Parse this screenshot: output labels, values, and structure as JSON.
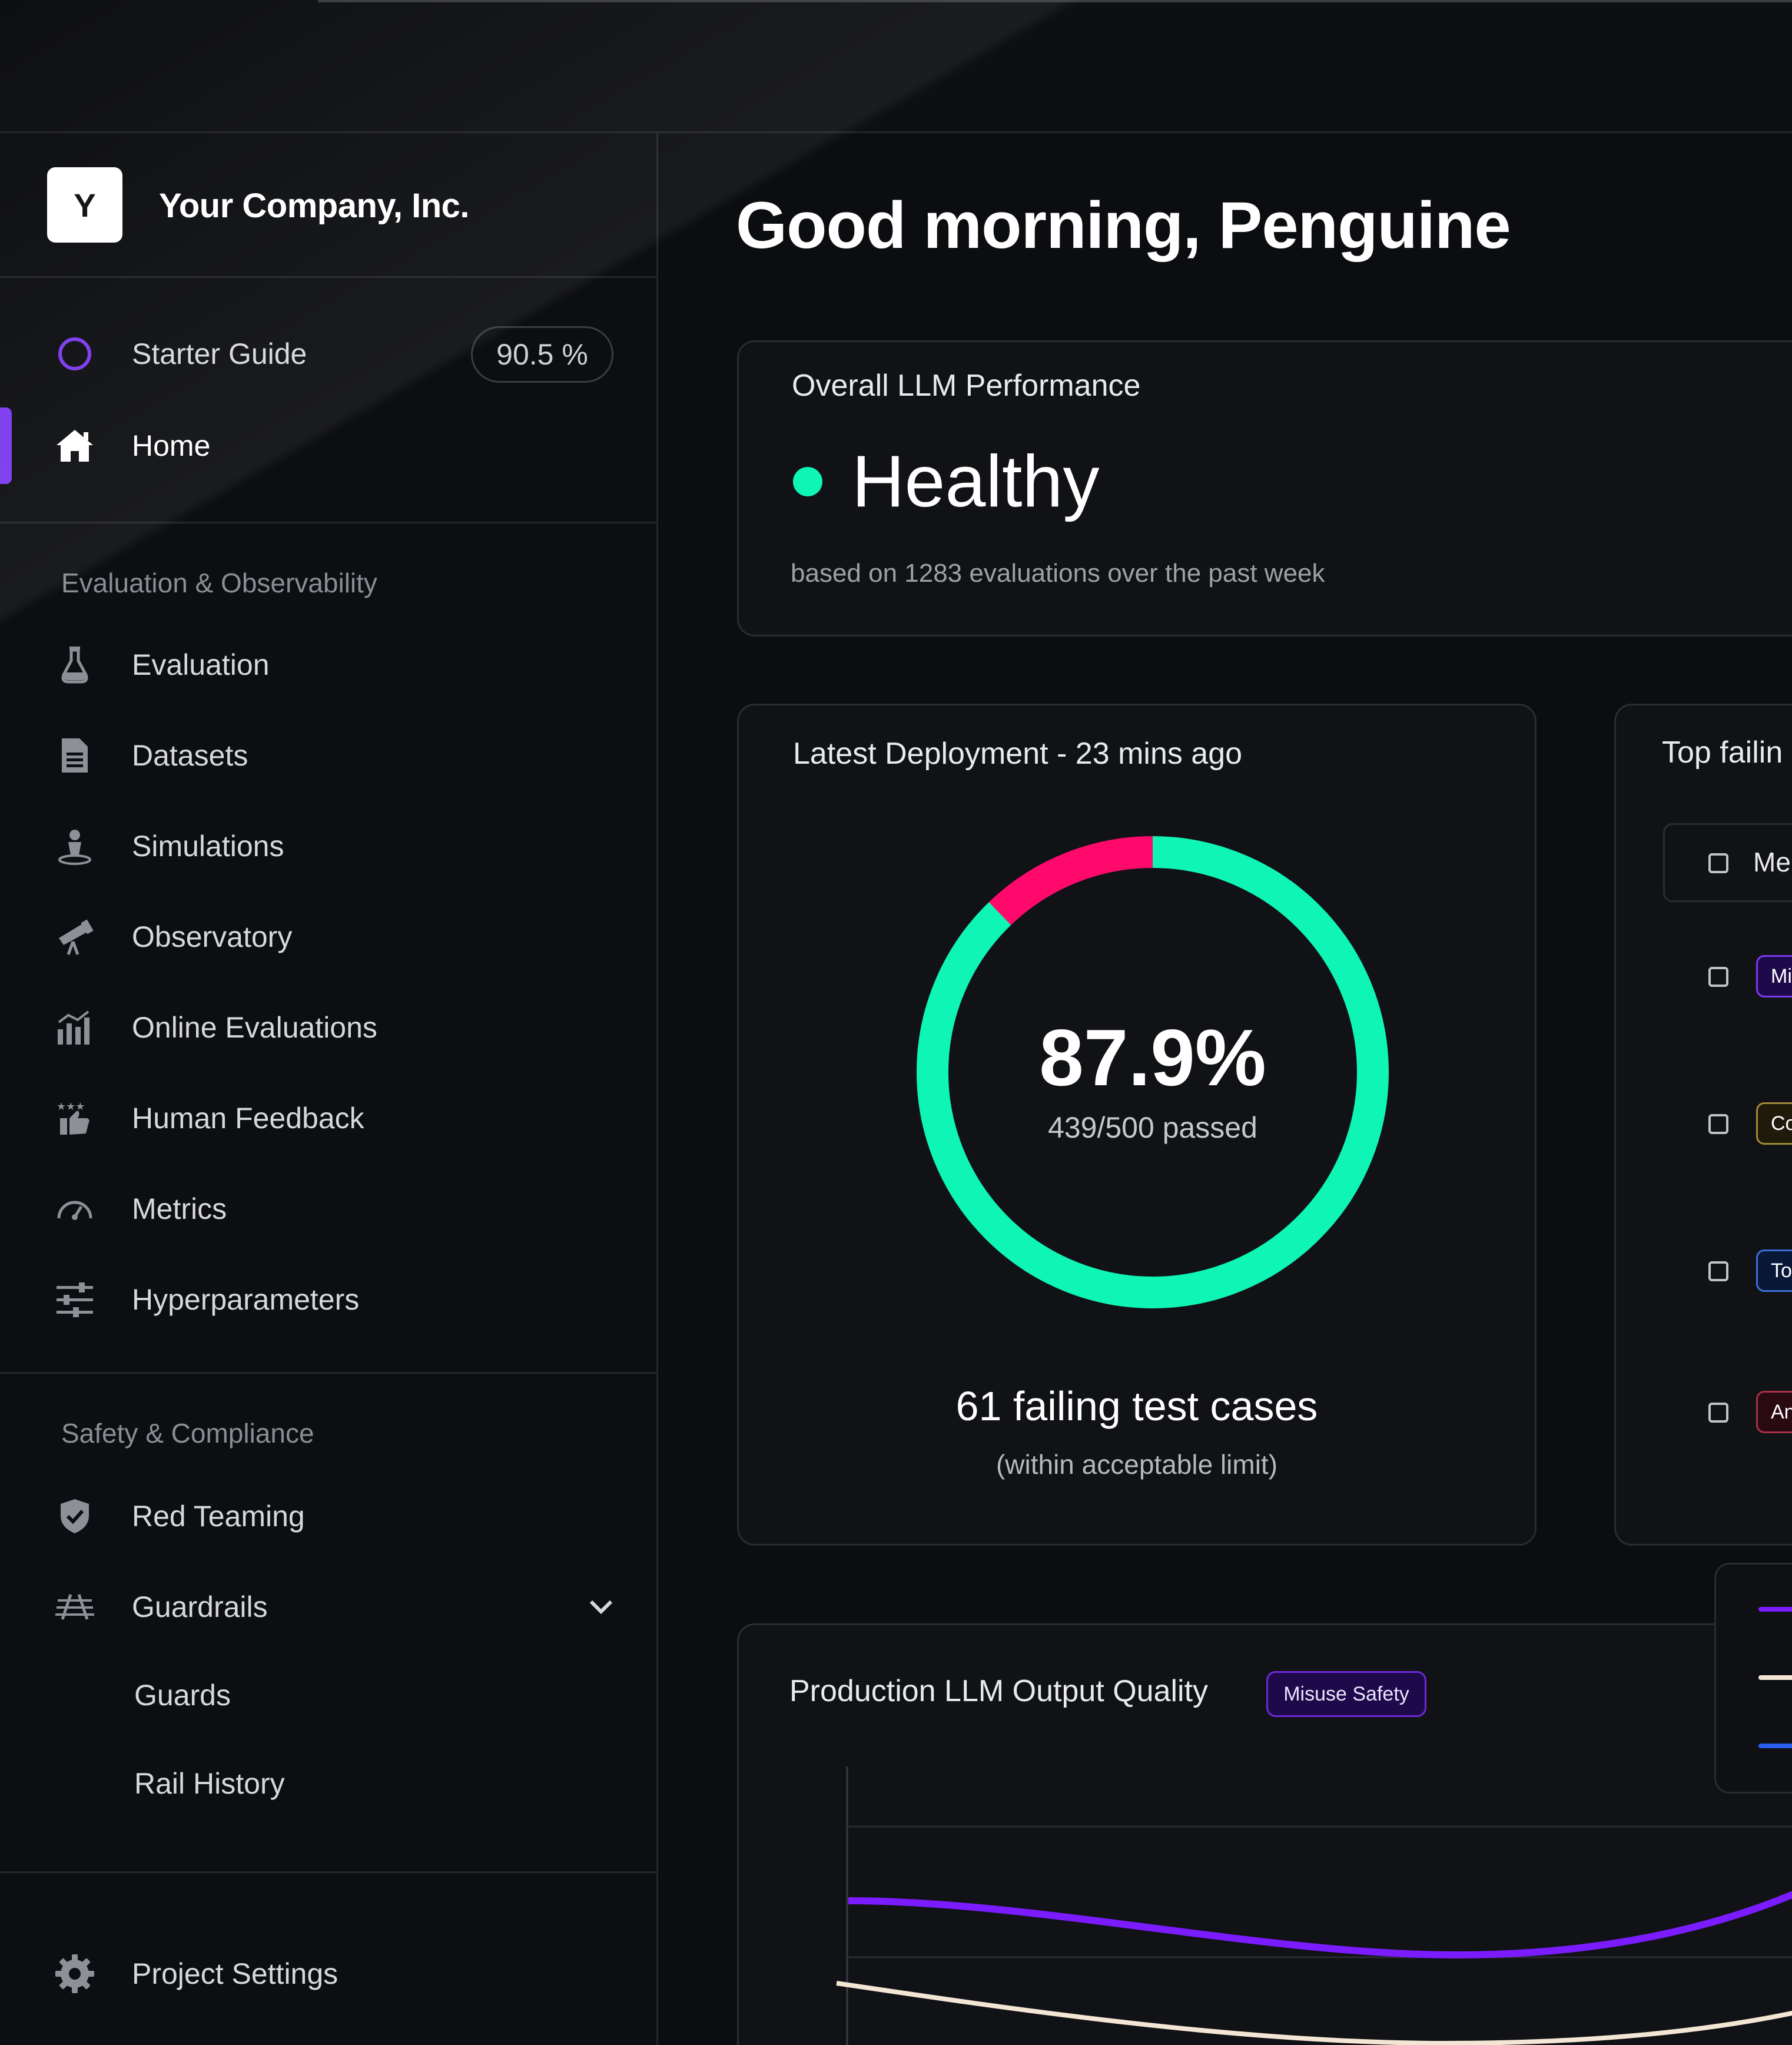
{
  "brand": {
    "logo_letter": "Y",
    "company_name": "Your Company, Inc."
  },
  "sidebar": {
    "starter_guide": {
      "label": "Starter Guide",
      "progress": "90.5 %"
    },
    "home": {
      "label": "Home",
      "active": true
    },
    "sections": [
      {
        "title": "Evaluation & Observability",
        "items": [
          {
            "label": "Evaluation",
            "icon": "flask-icon"
          },
          {
            "label": "Datasets",
            "icon": "document-icon"
          },
          {
            "label": "Simulations",
            "icon": "person-simulation-icon"
          },
          {
            "label": "Observatory",
            "icon": "telescope-icon"
          },
          {
            "label": "Online Evaluations",
            "icon": "bar-chart-icon"
          },
          {
            "label": "Human Feedback",
            "icon": "thumbs-up-stars-icon"
          },
          {
            "label": "Metrics",
            "icon": "gauge-icon"
          },
          {
            "label": "Hyperparameters",
            "icon": "sliders-icon"
          }
        ]
      },
      {
        "title": "Safety & Compliance",
        "items": [
          {
            "label": "Red Teaming",
            "icon": "shield-check-icon"
          },
          {
            "label": "Guardrails",
            "icon": "rails-icon",
            "expanded": true
          },
          {
            "label": "Guards",
            "sub": true
          },
          {
            "label": "Rail History",
            "sub": true
          }
        ]
      }
    ],
    "footer": {
      "label": "Project Settings",
      "icon": "gear-icon"
    }
  },
  "main": {
    "greeting": "Good morning, Penguine",
    "performance": {
      "title": "Overall LLM Performance",
      "status": "Healthy",
      "status_color": "#0ef5b6",
      "subtitle": "based on 1283 evaluations over the past week"
    },
    "deployment": {
      "title": "Latest Deployment - 23 mins ago",
      "pass_rate": "87.9%",
      "passed_label": "439/500 passed",
      "passed": 439,
      "total": 500,
      "failing_title": "61 failing test cases",
      "failing_sub": "(within acceptable limit)",
      "pass_color": "#0ef5b6",
      "fail_color": "#ff0a6c"
    },
    "top_failing": {
      "title": "Top failin",
      "header_label": "Me",
      "tags": [
        {
          "label": "Mi",
          "color": "#7c3aed",
          "bg": "#1e0a4a"
        },
        {
          "label": "Co",
          "color": "#a08a3a",
          "bg": "#1f1a0a"
        },
        {
          "label": "To",
          "color": "#3b6fd6",
          "bg": "#0a1838"
        },
        {
          "label": "An",
          "color": "#a3324a",
          "bg": "#2a0a12"
        }
      ]
    },
    "quality": {
      "title": "Production LLM Output Quality",
      "badge": "Misuse Safety"
    },
    "legend_colors": [
      "#7a1cff",
      "#f4e6d4",
      "#2b5cf0"
    ]
  }
}
